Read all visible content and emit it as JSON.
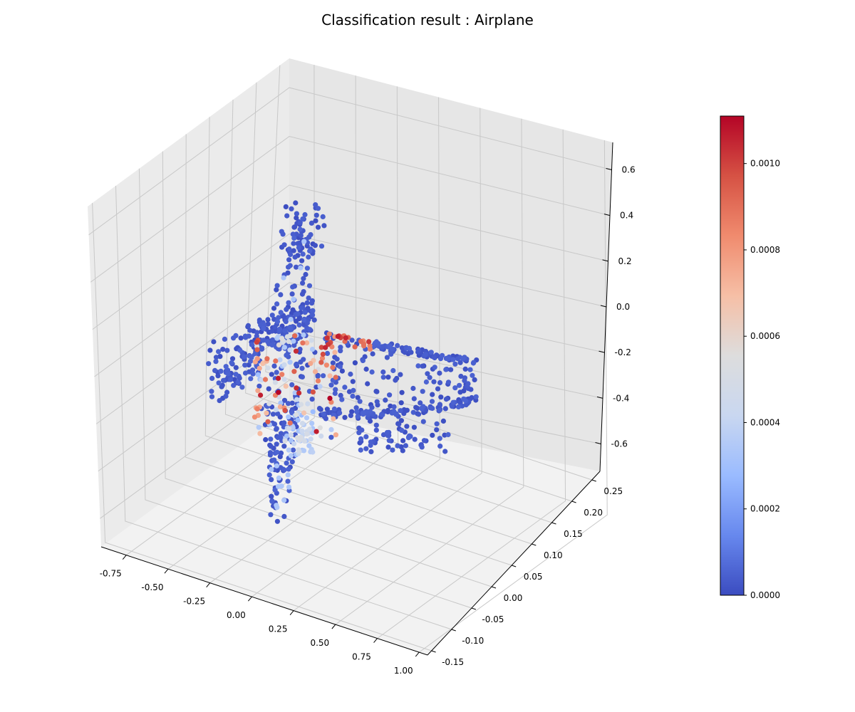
{
  "chart_data": {
    "type": "scatter",
    "projection": "3d",
    "title": "Classification result : Airplane",
    "xlabel": "",
    "ylabel": "",
    "zlabel": "",
    "xlim": [
      -0.9,
      1.05
    ],
    "ylim": [
      -0.16,
      0.27
    ],
    "zlim": [
      -0.72,
      0.72
    ],
    "x_ticks": [
      "-0.75",
      "-0.50",
      "-0.25",
      "0.00",
      "0.25",
      "0.50",
      "0.75",
      "1.00"
    ],
    "y_ticks": [
      "-0.15",
      "-0.10",
      "-0.05",
      "0.00",
      "0.05",
      "0.10",
      "0.15",
      "0.20",
      "0.25"
    ],
    "z_ticks": [
      "-0.6",
      "-0.4",
      "-0.2",
      "0.0",
      "0.2",
      "0.4",
      "0.6"
    ],
    "grid": true,
    "colormap": "coolwarm",
    "colorbar": {
      "min": 0.0,
      "max": 0.00111,
      "ticks": [
        "0.0000",
        "0.0002",
        "0.0004",
        "0.0006",
        "0.0008",
        "0.0010"
      ],
      "colors": [
        "#3b4cc0",
        "#6788ee",
        "#9abbff",
        "#c9d7f0",
        "#dddddd",
        "#f6bfa6",
        "#f08b6e",
        "#d65244",
        "#b40426"
      ]
    },
    "point_color_range": [
      0.0,
      0.00111
    ],
    "point_count_approx": 1024
  }
}
